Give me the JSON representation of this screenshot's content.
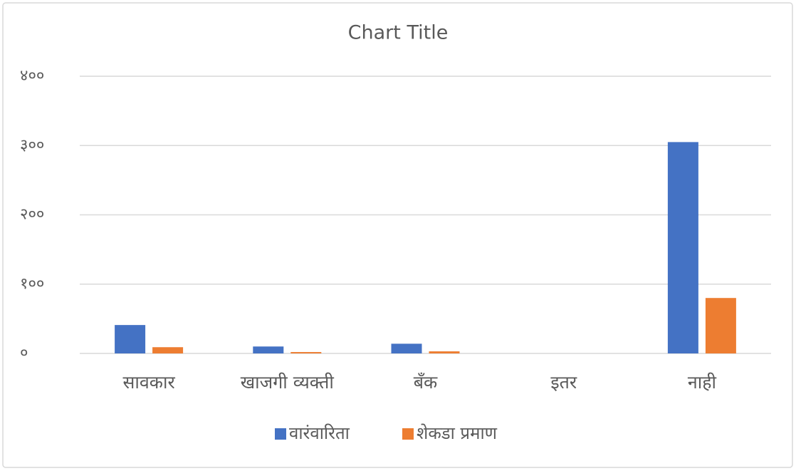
{
  "chart_data": {
    "type": "bar",
    "title": "Chart Title",
    "categories": [
      "सावकार",
      "खाजगी व्यक्ती",
      "बँक",
      "इतर",
      "नाही"
    ],
    "series": [
      {
        "name": "वारंवारिता",
        "color": "#4472c4",
        "values": [
          41,
          10,
          14,
          0,
          305
        ]
      },
      {
        "name": "शेकडा प्रमाण",
        "color": "#ed7d31",
        "values": [
          9,
          2,
          3,
          0,
          80
        ]
      }
    ],
    "ylim": [
      0,
      400
    ],
    "yticks": [
      {
        "value": 0,
        "label": "०"
      },
      {
        "value": 100,
        "label": "१००"
      },
      {
        "value": 200,
        "label": "२००"
      },
      {
        "value": 300,
        "label": "३००"
      },
      {
        "value": 400,
        "label": "४००"
      }
    ],
    "grid": true,
    "legend": "bottom"
  }
}
